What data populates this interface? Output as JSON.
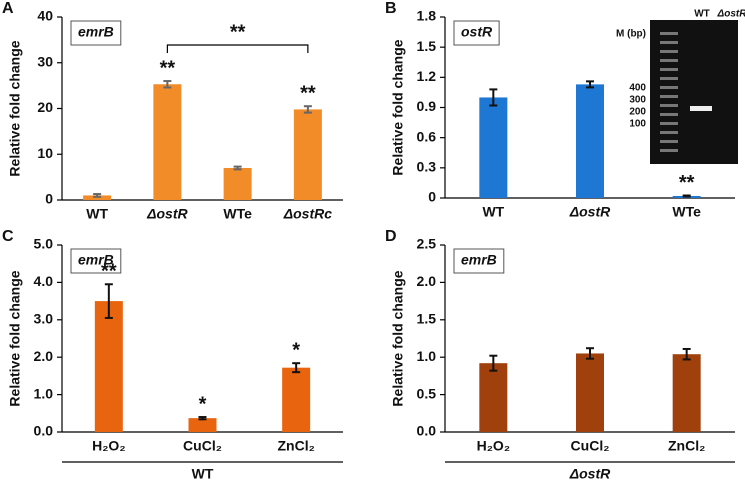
{
  "chart_data": [
    {
      "type": "bar",
      "panel": "A",
      "title": "emrB",
      "ylabel": "Relative fold change",
      "categories": [
        "WT",
        "ΔostR",
        "WTe",
        "ΔostRc"
      ],
      "values": [
        1.0,
        25.3,
        7.0,
        19.8
      ],
      "errors": [
        0.3,
        0.7,
        0.3,
        0.7
      ],
      "significance": [
        null,
        "**",
        null,
        "**"
      ],
      "bracket": {
        "label": "**",
        "from": "ΔostR",
        "to": "ΔostRc"
      },
      "color": "#f28c28",
      "error_color": "#666666",
      "ylim": [
        0,
        40
      ],
      "yticks": [
        0,
        10,
        20,
        30,
        40
      ]
    },
    {
      "type": "bar",
      "panel": "B",
      "title": "ostR",
      "ylabel": "Relative fold change",
      "categories": [
        "WT",
        "ΔostR",
        "WTe"
      ],
      "values": [
        1.0,
        1.13,
        0.02
      ],
      "errors": [
        0.08,
        0.03,
        0.005
      ],
      "significance": [
        null,
        null,
        "**"
      ],
      "color": "#1f77d4",
      "error_color": "#111111",
      "ylim": [
        0,
        1.8
      ],
      "yticks": [
        0,
        0.3,
        0.6,
        0.9,
        1.2,
        1.5,
        1.8
      ],
      "inset": {
        "lanes": [
          "WT",
          "ΔostR"
        ],
        "marker_label": "M (bp)",
        "marker_sizes": [
          400,
          300,
          200,
          100
        ]
      }
    },
    {
      "type": "bar",
      "panel": "C",
      "title": "emrB",
      "ylabel": "Relative fold change",
      "categories": [
        "H₂O₂",
        "CuCl₂",
        "ZnCl₂"
      ],
      "values": [
        3.5,
        0.37,
        1.72
      ],
      "errors": [
        0.45,
        0.03,
        0.12
      ],
      "significance": [
        "**",
        "*",
        "*"
      ],
      "group_label": "WT",
      "color": "#e8640e",
      "error_color": "#111111",
      "ylim": [
        0,
        5
      ],
      "yticks": [
        {
          "value": 0,
          "label": "0.0"
        },
        {
          "value": 1,
          "label": "1.0"
        },
        {
          "value": 2,
          "label": "2.0"
        },
        {
          "value": 3,
          "label": "3.0"
        },
        {
          "value": 4,
          "label": "4.0"
        },
        {
          "value": 5,
          "label": "5.0"
        }
      ]
    },
    {
      "type": "bar",
      "panel": "D",
      "title": "emrB",
      "ylabel": "Relative fold change",
      "categories": [
        "H₂O₂",
        "CuCl₂",
        "ZnCl₂"
      ],
      "values": [
        0.92,
        1.05,
        1.04
      ],
      "errors": [
        0.1,
        0.07,
        0.07
      ],
      "group_label": "ΔostR",
      "color": "#a0410d",
      "error_color": "#111111",
      "ylim": [
        0,
        2.5
      ],
      "yticks": [
        {
          "value": 0,
          "label": "0.0"
        },
        {
          "value": 0.5,
          "label": "0.5"
        },
        {
          "value": 1,
          "label": "1.0"
        },
        {
          "value": 1.5,
          "label": "1.5"
        },
        {
          "value": 2,
          "label": "2.0"
        },
        {
          "value": 2.5,
          "label": "2.5"
        }
      ]
    }
  ]
}
